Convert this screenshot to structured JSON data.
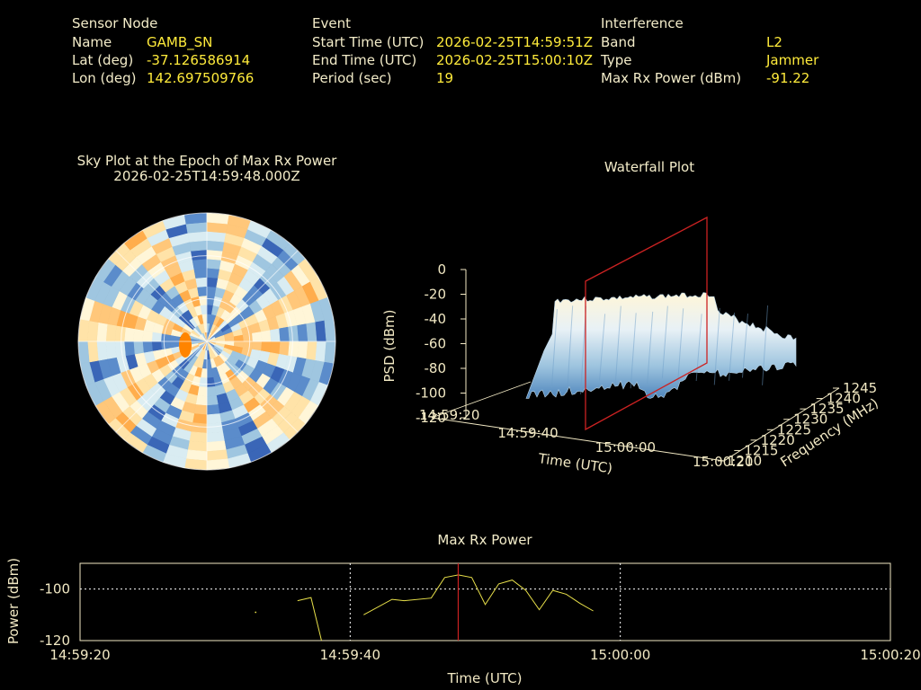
{
  "info": {
    "sensor": {
      "heading": "Sensor Node",
      "rows": [
        {
          "label": "Name",
          "value": "GAMB_SN"
        },
        {
          "label": "Lat (deg)",
          "value": "-37.126586914"
        },
        {
          "label": "Lon (deg)",
          "value": "142.697509766"
        }
      ]
    },
    "event": {
      "heading": "Event",
      "rows": [
        {
          "label": "Start Time (UTC)",
          "value": "2026-02-25T14:59:51Z"
        },
        {
          "label": "End Time (UTC)",
          "value": "2026-02-25T15:00:10Z"
        },
        {
          "label": "Period (sec)",
          "value": "19"
        }
      ]
    },
    "interference": {
      "heading": "Interference",
      "rows": [
        {
          "label": "Band",
          "value": "L2"
        },
        {
          "label": "Type",
          "value": "Jammer"
        },
        {
          "label": "Max Rx Power (dBm)",
          "value": "-91.22"
        }
      ]
    }
  },
  "chart_data": [
    {
      "type": "heatmap",
      "subtype": "polar sky plot",
      "title": "Sky Plot at the Epoch of Max Rx Power",
      "subtitle": "2026-02-25T14:59:48.000Z",
      "colors": {
        "low": "#3a66b7",
        "mid": "#fff6d8",
        "high": "#ffad4c",
        "peak": "#ff8400"
      }
    },
    {
      "type": "area",
      "subtype": "3d waterfall",
      "title": "Waterfall Plot",
      "zlabel": "PSD (dBm)",
      "xlabel": "Time (UTC)",
      "ylabel": "Frequency (MHz)",
      "zticks": [
        "0",
        "-20",
        "-40",
        "-60",
        "-80",
        "-100",
        "-120"
      ],
      "xticks": [
        "14:59:20",
        "14:59:40",
        "15:00:00",
        "15:00:20"
      ],
      "yticks": [
        "1210",
        "1215",
        "1220",
        "1225",
        "1230",
        "1235",
        "1240",
        "1245"
      ],
      "zlim": [
        -120,
        0
      ],
      "marker_time": "14:59:48",
      "marker_color": "#cc2222"
    },
    {
      "type": "line",
      "title": "Max Rx Power",
      "xlabel": "Time (UTC)",
      "ylabel": "Power (dBm)",
      "xlim": [
        0,
        60
      ],
      "ylim": [
        -120,
        -90
      ],
      "xticks": [
        {
          "v": 0,
          "label": "14:59:20"
        },
        {
          "v": 20,
          "label": "14:59:40"
        },
        {
          "v": 40,
          "label": "15:00:00"
        },
        {
          "v": 60,
          "label": "15:00:20"
        }
      ],
      "yticks": [
        {
          "v": -100,
          "label": "-100"
        },
        {
          "v": -120,
          "label": "-120"
        }
      ],
      "marker_x": 28,
      "line_color": "#e8e04a",
      "marker_color": "#cc2222",
      "series": [
        {
          "x": [
            13.0
          ],
          "y": [
            -109.0
          ]
        },
        {
          "x": [
            16.1,
            17.1,
            17.9
          ],
          "y": [
            -104.5,
            -103.3,
            -120.5
          ]
        },
        {
          "x": [
            21.0,
            23.1,
            24.0,
            26.0,
            27.0,
            28.0,
            29.0,
            30.0,
            31.0,
            32.0,
            33.0,
            34.0,
            35.0,
            36.0,
            37.0,
            38.0
          ],
          "y": [
            -110.0,
            -104.0,
            -104.5,
            -103.5,
            -95.5,
            -94.5,
            -95.5,
            -106.0,
            -98.0,
            -96.5,
            -100.5,
            -108.0,
            -100.5,
            -102.0,
            -105.5,
            -108.5
          ]
        }
      ]
    }
  ]
}
